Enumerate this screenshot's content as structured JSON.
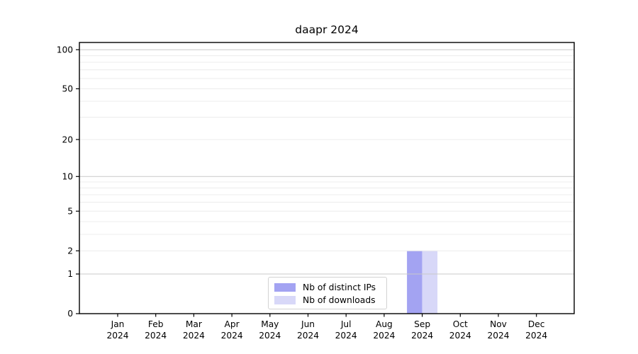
{
  "chart_data": {
    "type": "bar",
    "title": "daapr 2024",
    "categories": [
      "Jan 2024",
      "Feb 2024",
      "Mar 2024",
      "Apr 2024",
      "May 2024",
      "Jun 2024",
      "Jul 2024",
      "Aug 2024",
      "Sep 2024",
      "Oct 2024",
      "Nov 2024",
      "Dec 2024"
    ],
    "x_tick_line1": [
      "Jan",
      "Feb",
      "Mar",
      "Apr",
      "May",
      "Jun",
      "Jul",
      "Aug",
      "Sep",
      "Oct",
      "Nov",
      "Dec"
    ],
    "x_tick_line2": "2024",
    "series": [
      {
        "name": "Nb of distinct IPs",
        "color": "#a3a3f2",
        "values": [
          0,
          0,
          0,
          0,
          0,
          0,
          0,
          0,
          2,
          0,
          0,
          0
        ]
      },
      {
        "name": "Nb of downloads",
        "color": "#d8d8f8",
        "values": [
          0,
          0,
          0,
          0,
          0,
          0,
          0,
          0,
          2,
          0,
          0,
          0
        ]
      }
    ],
    "yscale": "log10(1+x)",
    "ylim": [
      0,
      120
    ],
    "y_tick_values": [
      0,
      1,
      2,
      5,
      10,
      20,
      50,
      100
    ],
    "y_tick_labels": [
      "0",
      "1",
      "2",
      "5",
      "10",
      "20",
      "50",
      "100"
    ],
    "y_major_gridlines": [
      1,
      10,
      100
    ],
    "y_minor_gridlines": [
      2,
      3,
      4,
      5,
      6,
      7,
      8,
      9,
      20,
      30,
      40,
      50,
      60,
      70,
      80,
      90
    ],
    "grid": "horizontal",
    "legend_position": "inside-bottom-center",
    "xlabel": "",
    "ylabel": ""
  },
  "colors": {
    "background": "#ffffff",
    "spine": "#000000",
    "major_grid": "#c9c9c9",
    "minor_grid": "#ececec",
    "text": "#000000",
    "legend_border": "#d2d2d2",
    "legend_bg": "#ffffff"
  }
}
